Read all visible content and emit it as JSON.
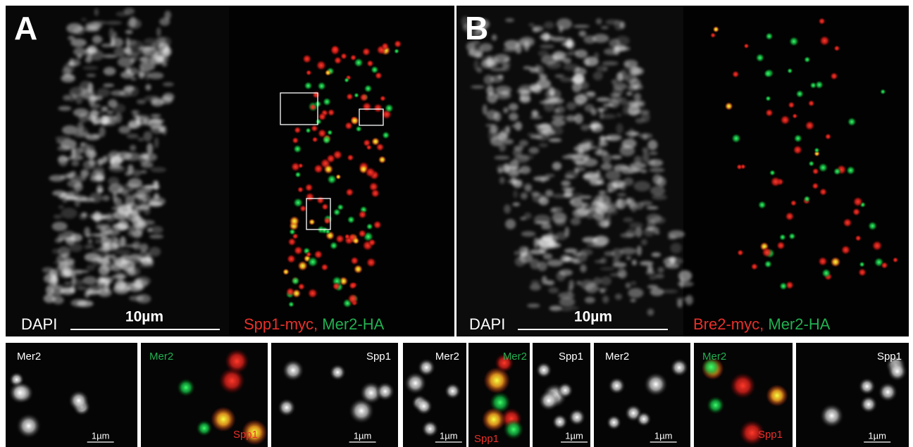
{
  "panels": [
    {
      "label": "A",
      "dapi": "DAPI",
      "scale": "10µm",
      "red": "Spp1-myc,",
      "green": "Mer2-HA"
    },
    {
      "label": "B",
      "dapi": "DAPI",
      "scale": "10µm",
      "red": "Bre2-myc,",
      "green": "Mer2-HA"
    }
  ],
  "insets": [
    {
      "label": "Mer2",
      "scale": "1µm"
    },
    {
      "green": "Mer2",
      "red": "Spp1"
    },
    {
      "label": "Spp1",
      "scale": "1µm"
    },
    {
      "label": "Mer2",
      "scale": "1µm"
    },
    {
      "green": "Mer2",
      "red": "Spp1"
    },
    {
      "label": "Spp1",
      "scale": "1µm"
    },
    {
      "label": "Mer2",
      "scale": "1µm"
    },
    {
      "green": "Mer2",
      "red": "Spp1"
    },
    {
      "label": "Spp1",
      "scale": "1µm"
    }
  ]
}
